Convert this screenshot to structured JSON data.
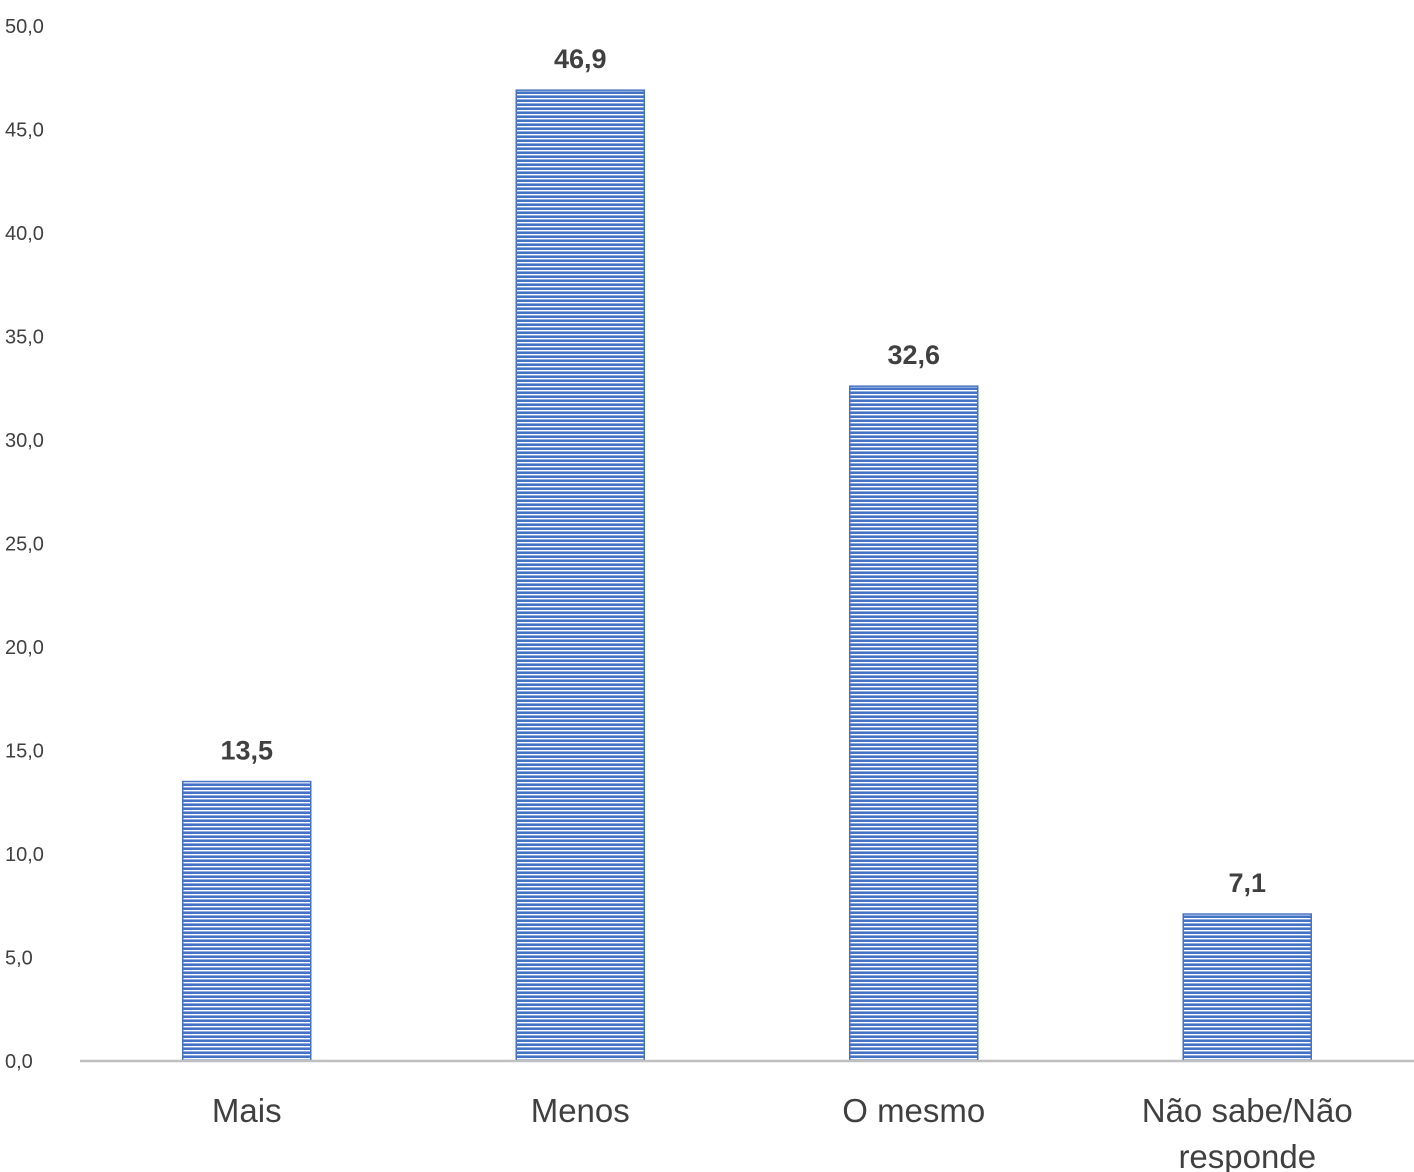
{
  "chart_data": {
    "type": "bar",
    "categories": [
      [
        "Mais"
      ],
      [
        "Menos"
      ],
      [
        "O mesmo"
      ],
      [
        "Não sabe/Não",
        "responde"
      ]
    ],
    "values": [
      13.5,
      46.9,
      32.6,
      7.1
    ],
    "value_labels": [
      "13,5",
      "46,9",
      "32,6",
      "7,1"
    ],
    "ylim": [
      0,
      50
    ],
    "yticks": [
      0,
      5,
      10,
      15,
      20,
      25,
      30,
      35,
      40,
      45,
      50
    ],
    "ytick_labels": [
      "0,0",
      "5,0",
      "10,0",
      "15,0",
      "20,0",
      "25,0",
      "30,0",
      "35,0",
      "40,0",
      "45,0",
      "50,0"
    ],
    "title": "",
    "xlabel": "",
    "ylabel": "",
    "grid": false,
    "colors": {
      "bar_fill": "#4472c4",
      "bar_stripe": "#ffffff",
      "axis_line": "#bfbfbf",
      "text": "#404040"
    }
  }
}
